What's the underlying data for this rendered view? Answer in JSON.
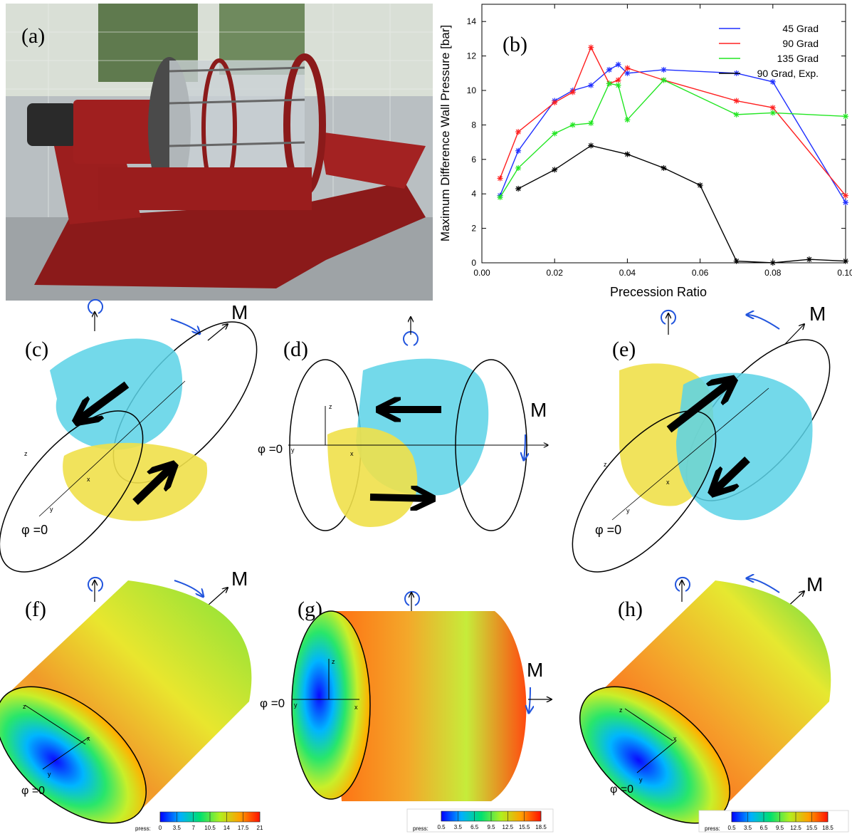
{
  "labels": {
    "a": "(a)",
    "b": "(b)",
    "c": "(c)",
    "d": "(d)",
    "e": "(e)",
    "f": "(f)",
    "g": "(g)",
    "h": "(h)",
    "M": "M",
    "phi0": "φ =0",
    "ax_x": "x",
    "ax_y": "y",
    "ax_z": "z"
  },
  "chart_data": {
    "type": "line",
    "xlabel": "Precession Ratio",
    "ylabel": "Maximum Difference Wall Pressure [bar]",
    "xlim": [
      0.0,
      0.1
    ],
    "ylim": [
      0,
      15
    ],
    "xticks": [
      0.0,
      0.02,
      0.04,
      0.06,
      0.08,
      0.1
    ],
    "xtick_labels": [
      "0.00",
      "0.02",
      "0.04",
      "0.06",
      "0.08",
      "0.10"
    ],
    "yticks": [
      0,
      2,
      4,
      6,
      8,
      10,
      12,
      14
    ],
    "ytick_labels": [
      "0",
      "2",
      "4",
      "6",
      "8",
      "10",
      "12",
      "14"
    ],
    "grid": false,
    "legend_position": "top-right",
    "series": [
      {
        "name": "45 Grad",
        "color": "#1f2fff",
        "x": [
          0.005,
          0.01,
          0.02,
          0.025,
          0.03,
          0.035,
          0.0375,
          0.04,
          0.05,
          0.07,
          0.08,
          0.1
        ],
        "y": [
          3.9,
          6.5,
          9.4,
          10.0,
          10.3,
          11.2,
          11.5,
          11.0,
          11.2,
          11.0,
          10.5,
          3.5
        ]
      },
      {
        "name": "90 Grad",
        "color": "#ff2020",
        "x": [
          0.005,
          0.01,
          0.02,
          0.025,
          0.03,
          0.035,
          0.0375,
          0.04,
          0.05,
          0.07,
          0.08,
          0.1
        ],
        "y": [
          4.9,
          7.6,
          9.3,
          9.9,
          12.5,
          10.4,
          10.6,
          11.3,
          10.6,
          9.4,
          9.0,
          3.9
        ]
      },
      {
        "name": "135 Grad",
        "color": "#22e622",
        "x": [
          0.005,
          0.01,
          0.02,
          0.025,
          0.03,
          0.035,
          0.0375,
          0.04,
          0.05,
          0.07,
          0.08,
          0.1
        ],
        "y": [
          3.8,
          5.5,
          7.5,
          8.0,
          8.1,
          10.4,
          10.3,
          8.3,
          10.6,
          8.6,
          8.7,
          8.5
        ]
      },
      {
        "name": "90 Grad, Exp.",
        "color": "#000000",
        "x": [
          0.01,
          0.02,
          0.03,
          0.04,
          0.05,
          0.06,
          0.07,
          0.08,
          0.09,
          0.1
        ],
        "y": [
          4.3,
          5.4,
          6.8,
          6.3,
          5.5,
          4.5,
          0.1,
          0.0,
          0.2,
          0.1
        ]
      }
    ]
  },
  "colorbars": [
    {
      "label": "press:",
      "ticks": [
        "0",
        "3.5",
        "7",
        "10.5",
        "14",
        "17.5",
        "21"
      ]
    },
    {
      "label": "press:",
      "ticks": [
        "0.5",
        "3.5",
        "6.5",
        "9.5",
        "12.5",
        "15.5",
        "18.5"
      ]
    },
    {
      "label": "press:",
      "ticks": [
        "0.5",
        "3.5",
        "6.5",
        "9.5",
        "12.5",
        "15.5",
        "18.5"
      ]
    }
  ]
}
